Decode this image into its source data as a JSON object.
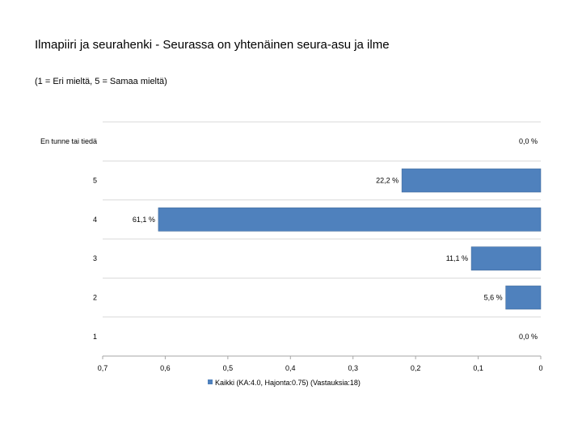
{
  "chart_data": {
    "type": "bar",
    "orientation": "horizontal",
    "title": "Ilmapiiri ja seurahenki - Seurassa on yhtenäinen seura-asu ja ilme",
    "subtitle": "(1 = Eri mieltä, 5 = Samaa mieltä)",
    "categories": [
      "En tunne tai tiedä",
      "5",
      "4",
      "3",
      "2",
      "1"
    ],
    "series": [
      {
        "name": "Kaikki (KA:4.0, Hajonta:0.75) (Vastauksia:18)",
        "values": [
          0.0,
          0.222,
          0.611,
          0.111,
          0.056,
          0.0
        ],
        "value_labels": [
          "0,0 %",
          "22,2 %",
          "61,1 %",
          "11,1 %",
          "5,6 %",
          "0,0 %"
        ]
      }
    ],
    "xlim": [
      0.7,
      0
    ],
    "x_reversed": true,
    "x_ticks": [
      0.7,
      0.6,
      0.5,
      0.4,
      0.3,
      0.2,
      0.1,
      0
    ],
    "x_tick_labels": [
      "0,7",
      "0,6",
      "0,5",
      "0,4",
      "0,3",
      "0,2",
      "0,1",
      "0"
    ],
    "grid": "horizontal",
    "legend_position": "bottom",
    "bar_color": "#4f81bd"
  }
}
